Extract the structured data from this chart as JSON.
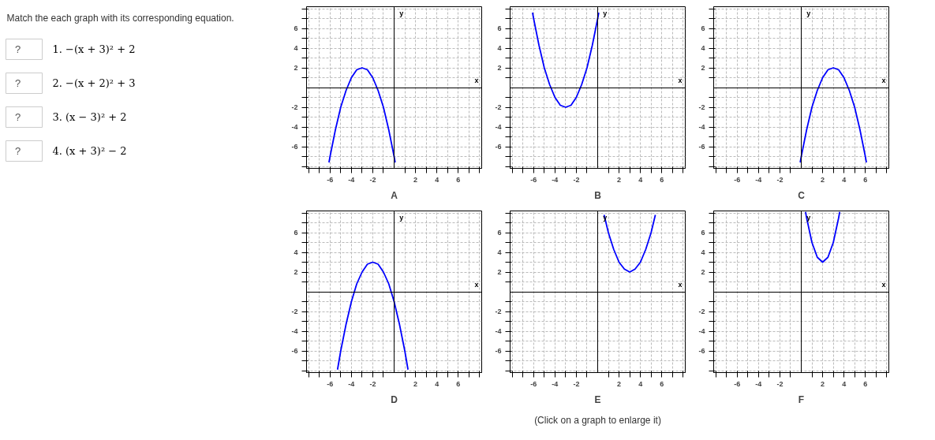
{
  "chart_data": [
    {
      "type": "other",
      "title": "Match the each graph with its corresponding equation.",
      "annotations": [
        "?",
        "1. −(x + 3)² + 2",
        "?",
        "2. −(x + 2)² + 3",
        "?",
        "3. (x − 3)² + 2",
        "?",
        "4. (x + 3)² − 2"
      ]
    },
    {
      "type": "line",
      "title": "A",
      "xlabel": "x",
      "ylabel": "y",
      "xlim": [
        -8.2,
        8.2
      ],
      "ylim": [
        -8.2,
        8.2
      ],
      "xticks": [
        {
          "value": -8,
          "label": null
        },
        {
          "value": -7,
          "label": null
        },
        -6,
        {
          "value": -5,
          "label": null
        },
        -4,
        {
          "value": -3,
          "label": null
        },
        -2,
        {
          "value": -1,
          "label": null
        },
        {
          "value": 1,
          "label": null
        },
        2,
        {
          "value": 3,
          "label": null
        },
        4,
        {
          "value": 5,
          "label": null
        },
        6,
        {
          "value": 7,
          "label": null
        },
        {
          "value": 8,
          "label": null
        }
      ],
      "yticks": [
        {
          "value": -8,
          "label": null
        },
        {
          "value": -7,
          "label": null
        },
        -6,
        {
          "value": -5,
          "label": null
        },
        -4,
        {
          "value": -3,
          "label": null
        },
        -2,
        {
          "value": -1,
          "label": null
        },
        {
          "value": 1,
          "label": null
        },
        2,
        {
          "value": 3,
          "label": null
        },
        4,
        {
          "value": 5,
          "label": null
        },
        6,
        {
          "value": 7,
          "label": null
        },
        {
          "value": 8,
          "label": null
        }
      ],
      "grid": true,
      "x": [
        -6.1,
        -6,
        -5.5,
        -5,
        -4.5,
        -4,
        -3.5,
        -3,
        -2.5,
        -2,
        -1.5,
        -1,
        -0.5,
        0,
        0.1
      ],
      "series": [
        {
          "color": "#0000ff",
          "values": [
            -7.6,
            -7,
            -4.3,
            -2,
            -0.3,
            1,
            1.8,
            2,
            1.8,
            1,
            -0.3,
            -2,
            -4.3,
            -7,
            -7.6
          ]
        }
      ]
    },
    {
      "type": "line",
      "title": "B",
      "xlabel": "x",
      "ylabel": "y",
      "xlim": [
        -8.2,
        8.2
      ],
      "ylim": [
        -8.2,
        8.2
      ],
      "xticks": [
        {
          "value": -8,
          "label": null
        },
        {
          "value": -7,
          "label": null
        },
        -6,
        {
          "value": -5,
          "label": null
        },
        -4,
        {
          "value": -3,
          "label": null
        },
        -2,
        {
          "value": -1,
          "label": null
        },
        {
          "value": 1,
          "label": null
        },
        2,
        {
          "value": 3,
          "label": null
        },
        4,
        {
          "value": 5,
          "label": null
        },
        6,
        {
          "value": 7,
          "label": null
        },
        {
          "value": 8,
          "label": null
        }
      ],
      "yticks": [
        {
          "value": -8,
          "label": null
        },
        {
          "value": -7,
          "label": null
        },
        -6,
        {
          "value": -5,
          "label": null
        },
        -4,
        {
          "value": -3,
          "label": null
        },
        -2,
        {
          "value": -1,
          "label": null
        },
        {
          "value": 1,
          "label": null
        },
        2,
        {
          "value": 3,
          "label": null
        },
        4,
        {
          "value": 5,
          "label": null
        },
        6,
        {
          "value": 7,
          "label": null
        },
        {
          "value": 8,
          "label": null
        }
      ],
      "grid": true,
      "x": [
        -6.1,
        -6,
        -5.5,
        -5,
        -4.5,
        -4,
        -3.5,
        -3,
        -2.5,
        -2,
        -1.5,
        -1,
        -0.5,
        0,
        0.1
      ],
      "series": [
        {
          "color": "#0000ff",
          "values": [
            7.6,
            7,
            4.3,
            2,
            0.3,
            -1,
            -1.8,
            -2,
            -1.8,
            -1,
            0.3,
            2,
            4.3,
            7,
            7.6
          ]
        }
      ]
    },
    {
      "type": "line",
      "title": "C",
      "xlabel": "x",
      "ylabel": "y",
      "xlim": [
        -8.2,
        8.2
      ],
      "ylim": [
        -8.2,
        8.2
      ],
      "xticks": [
        {
          "value": -8,
          "label": null
        },
        {
          "value": -7,
          "label": null
        },
        -6,
        {
          "value": -5,
          "label": null
        },
        -4,
        {
          "value": -3,
          "label": null
        },
        -2,
        {
          "value": -1,
          "label": null
        },
        {
          "value": 1,
          "label": null
        },
        2,
        {
          "value": 3,
          "label": null
        },
        4,
        {
          "value": 5,
          "label": null
        },
        6,
        {
          "value": 7,
          "label": null
        },
        {
          "value": 8,
          "label": null
        }
      ],
      "yticks": [
        {
          "value": -8,
          "label": null
        },
        {
          "value": -7,
          "label": null
        },
        -6,
        {
          "value": -5,
          "label": null
        },
        -4,
        {
          "value": -3,
          "label": null
        },
        -2,
        {
          "value": -1,
          "label": null
        },
        {
          "value": 1,
          "label": null
        },
        2,
        {
          "value": 3,
          "label": null
        },
        4,
        {
          "value": 5,
          "label": null
        },
        6,
        {
          "value": 7,
          "label": null
        },
        {
          "value": 8,
          "label": null
        }
      ],
      "grid": true,
      "x": [
        -0.1,
        0,
        0.5,
        1,
        1.5,
        2,
        2.5,
        3,
        3.5,
        4,
        4.5,
        5,
        5.5,
        6,
        6.1
      ],
      "series": [
        {
          "color": "#0000ff",
          "values": [
            -7.6,
            -7,
            -4.3,
            -2,
            -0.3,
            1,
            1.8,
            2,
            1.8,
            1,
            -0.3,
            -2,
            -4.3,
            -7,
            -7.6
          ]
        }
      ]
    },
    {
      "type": "line",
      "title": "D",
      "xlabel": "x",
      "ylabel": "y",
      "xlim": [
        -8.2,
        8.2
      ],
      "ylim": [
        -8.2,
        8.2
      ],
      "xticks": [
        {
          "value": -8,
          "label": null
        },
        {
          "value": -7,
          "label": null
        },
        -6,
        {
          "value": -5,
          "label": null
        },
        -4,
        {
          "value": -3,
          "label": null
        },
        -2,
        {
          "value": -1,
          "label": null
        },
        {
          "value": 1,
          "label": null
        },
        2,
        {
          "value": 3,
          "label": null
        },
        4,
        {
          "value": 5,
          "label": null
        },
        6,
        {
          "value": 7,
          "label": null
        },
        {
          "value": 8,
          "label": null
        }
      ],
      "yticks": [
        {
          "value": -8,
          "label": null
        },
        {
          "value": -7,
          "label": null
        },
        -6,
        {
          "value": -5,
          "label": null
        },
        -4,
        {
          "value": -3,
          "label": null
        },
        -2,
        {
          "value": -1,
          "label": null
        },
        {
          "value": 1,
          "label": null
        },
        2,
        {
          "value": 3,
          "label": null
        },
        4,
        {
          "value": 5,
          "label": null
        },
        6,
        {
          "value": 7,
          "label": null
        },
        {
          "value": 8,
          "label": null
        }
      ],
      "grid": true,
      "x": [
        -5.3,
        -5,
        -4.5,
        -4,
        -3.5,
        -3,
        -2.5,
        -2,
        -1.5,
        -1,
        -0.5,
        0,
        0.5,
        1,
        1.3
      ],
      "series": [
        {
          "color": "#0000ff",
          "values": [
            -7.9,
            -6,
            -3.3,
            -1,
            0.8,
            2,
            2.8,
            3,
            2.8,
            2,
            0.8,
            -1,
            -3.3,
            -6,
            -7.9
          ]
        }
      ]
    },
    {
      "type": "line",
      "title": "E",
      "xlabel": "x",
      "ylabel": "y",
      "xlim": [
        -8.2,
        8.2
      ],
      "ylim": [
        -8.2,
        8.2
      ],
      "xticks": [
        {
          "value": -8,
          "label": null
        },
        {
          "value": -7,
          "label": null
        },
        -6,
        {
          "value": -5,
          "label": null
        },
        -4,
        {
          "value": -3,
          "label": null
        },
        -2,
        {
          "value": -1,
          "label": null
        },
        {
          "value": 1,
          "label": null
        },
        2,
        {
          "value": 3,
          "label": null
        },
        4,
        {
          "value": 5,
          "label": null
        },
        6,
        {
          "value": 7,
          "label": null
        },
        {
          "value": 8,
          "label": null
        }
      ],
      "yticks": [
        {
          "value": -8,
          "label": null
        },
        {
          "value": -7,
          "label": null
        },
        -6,
        {
          "value": -5,
          "label": null
        },
        -4,
        {
          "value": -3,
          "label": null
        },
        -2,
        {
          "value": -1,
          "label": null
        },
        {
          "value": 1,
          "label": null
        },
        2,
        {
          "value": 3,
          "label": null
        },
        4,
        {
          "value": 5,
          "label": null
        },
        6,
        {
          "value": 7,
          "label": null
        },
        {
          "value": 8,
          "label": null
        }
      ],
      "grid": true,
      "annotations": [
        "(Click on a graph to enlarge it)"
      ],
      "x": [
        0.6,
        1,
        1.5,
        2,
        2.5,
        3,
        3.5,
        4,
        4.5,
        5,
        5.4
      ],
      "series": [
        {
          "color": "#0000ff",
          "values": [
            7.8,
            6,
            4.3,
            3,
            2.3,
            2,
            2.3,
            3,
            4.3,
            6,
            7.8
          ]
        }
      ]
    },
    {
      "type": "line",
      "title": "F",
      "xlabel": "x",
      "ylabel": "y",
      "xlim": [
        -8.2,
        8.2
      ],
      "ylim": [
        -8.2,
        8.2
      ],
      "xticks": [
        {
          "value": -8,
          "label": null
        },
        {
          "value": -7,
          "label": null
        },
        -6,
        {
          "value": -5,
          "label": null
        },
        -4,
        {
          "value": -3,
          "label": null
        },
        -2,
        {
          "value": -1,
          "label": null
        },
        {
          "value": 1,
          "label": null
        },
        2,
        {
          "value": 3,
          "label": null
        },
        4,
        {
          "value": 5,
          "label": null
        },
        6,
        {
          "value": 7,
          "label": null
        },
        {
          "value": 8,
          "label": null
        }
      ],
      "yticks": [
        {
          "value": -8,
          "label": null
        },
        {
          "value": -7,
          "label": null
        },
        -6,
        {
          "value": -5,
          "label": null
        },
        -4,
        {
          "value": -3,
          "label": null
        },
        -2,
        {
          "value": -1,
          "label": null
        },
        {
          "value": 1,
          "label": null
        },
        2,
        {
          "value": 3,
          "label": null
        },
        4,
        {
          "value": 5,
          "label": null
        },
        6,
        {
          "value": 7,
          "label": null
        },
        {
          "value": 8,
          "label": null
        }
      ],
      "grid": true,
      "x": [
        0.4,
        0.5,
        1,
        1.5,
        2,
        2.5,
        3,
        3.5,
        3.6
      ],
      "series": [
        {
          "color": "#0000ff",
          "values": [
            8.1,
            7.5,
            5,
            3.5,
            3,
            3.5,
            5,
            7.5,
            8.1
          ]
        }
      ]
    }
  ]
}
